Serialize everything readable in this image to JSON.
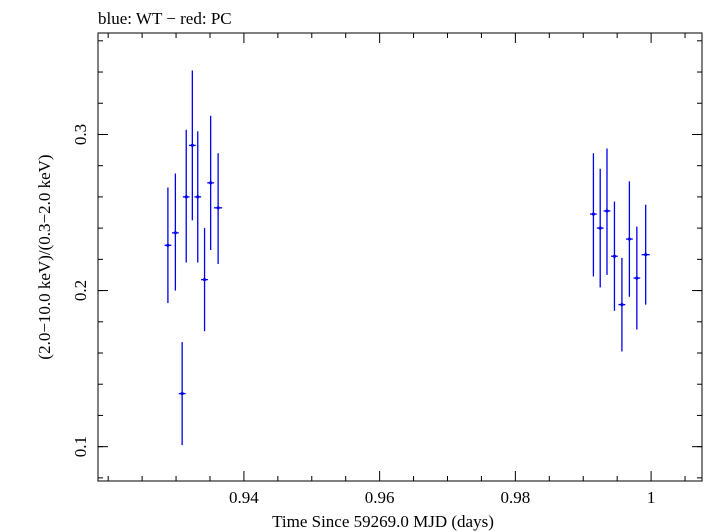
{
  "chart_data": {
    "type": "scatter",
    "title": "blue: WT − red: PC",
    "xlabel": "Time Since 59269.0 MJD (days)",
    "ylabel": "(2.0−10.0 keV)/(0.3−2.0 keV)",
    "xlim": [
      0.9185,
      1.0075
    ],
    "ylim": [
      0.078,
      0.365
    ],
    "x_major_ticks": [
      0.94,
      0.96,
      0.98,
      1.0
    ],
    "x_tick_labels": [
      "0.94",
      "0.96",
      "0.98",
      "1"
    ],
    "y_major_ticks": [
      0.1,
      0.2,
      0.3
    ],
    "y_tick_labels": [
      "0.1",
      "0.2",
      "0.3"
    ],
    "x_minor_step": 0.005,
    "y_minor_step": 0.02,
    "grid": false,
    "legend": "none",
    "series": [
      {
        "color": "#0000ee",
        "points": [
          {
            "x": 0.9288,
            "y": 0.229,
            "ylo": 0.192,
            "yhi": 0.266,
            "xerr": 0.0005
          },
          {
            "x": 0.9299,
            "y": 0.237,
            "ylo": 0.2,
            "yhi": 0.275,
            "xerr": 0.0005
          },
          {
            "x": 0.9309,
            "y": 0.134,
            "ylo": 0.101,
            "yhi": 0.167,
            "xerr": 0.0005
          },
          {
            "x": 0.9315,
            "y": 0.26,
            "ylo": 0.218,
            "yhi": 0.303,
            "xerr": 0.0005
          },
          {
            "x": 0.9324,
            "y": 0.293,
            "ylo": 0.245,
            "yhi": 0.341,
            "xerr": 0.0005
          },
          {
            "x": 0.9332,
            "y": 0.26,
            "ylo": 0.218,
            "yhi": 0.302,
            "xerr": 0.0005
          },
          {
            "x": 0.9342,
            "y": 0.207,
            "ylo": 0.174,
            "yhi": 0.24,
            "xerr": 0.0005
          },
          {
            "x": 0.9351,
            "y": 0.269,
            "ylo": 0.226,
            "yhi": 0.312,
            "xerr": 0.0005
          },
          {
            "x": 0.9362,
            "y": 0.253,
            "ylo": 0.217,
            "yhi": 0.288,
            "xerr": 0.0006
          },
          {
            "x": 0.9915,
            "y": 0.249,
            "ylo": 0.209,
            "yhi": 0.288,
            "xerr": 0.0005
          },
          {
            "x": 0.9925,
            "y": 0.24,
            "ylo": 0.202,
            "yhi": 0.278,
            "xerr": 0.0005
          },
          {
            "x": 0.9935,
            "y": 0.251,
            "ylo": 0.21,
            "yhi": 0.291,
            "xerr": 0.0005
          },
          {
            "x": 0.9946,
            "y": 0.222,
            "ylo": 0.187,
            "yhi": 0.257,
            "xerr": 0.0005
          },
          {
            "x": 0.9957,
            "y": 0.191,
            "ylo": 0.161,
            "yhi": 0.221,
            "xerr": 0.0005
          },
          {
            "x": 0.9968,
            "y": 0.233,
            "ylo": 0.196,
            "yhi": 0.27,
            "xerr": 0.0005
          },
          {
            "x": 0.9979,
            "y": 0.208,
            "ylo": 0.175,
            "yhi": 0.241,
            "xerr": 0.0005
          },
          {
            "x": 0.9992,
            "y": 0.223,
            "ylo": 0.191,
            "yhi": 0.255,
            "xerr": 0.0006
          }
        ]
      }
    ]
  }
}
